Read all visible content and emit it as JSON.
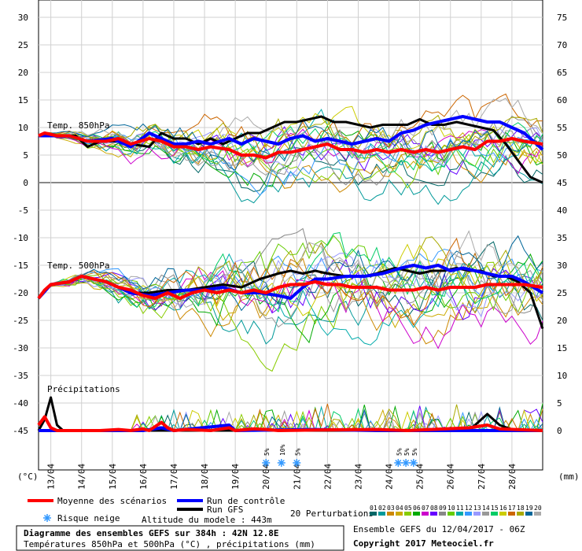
{
  "chart_data": {
    "type": "line",
    "title": "Diagramme des ensembles GEFS sur 384h : 42N 12.8E",
    "subtitle": "Températures 850hPa et 500hPa (°C) , précipitations (mm)",
    "left_axis": {
      "unit": "(°C)",
      "ticks": [
        30,
        25,
        20,
        15,
        10,
        5,
        0,
        -5,
        -10,
        -15,
        -20,
        -25,
        -30,
        -35,
        -40,
        -45
      ]
    },
    "right_axis": {
      "unit": "(mm)",
      "ticks": [
        75,
        70,
        65,
        60,
        55,
        50,
        45,
        40,
        35,
        30,
        25,
        20,
        15,
        10,
        5,
        0
      ]
    },
    "dates": [
      "13/04",
      "14/04",
      "15/04",
      "16/04",
      "17/04",
      "18/04",
      "19/04",
      "20/04",
      "21/04",
      "22/04",
      "23/04",
      "24/04",
      "25/04",
      "26/04",
      "27/04",
      "28/04"
    ],
    "panels": {
      "t850": "Temp. 850hPa",
      "t500": "Temp. 500hPa",
      "precip": "Précipitations"
    },
    "snow_risk": [
      {
        "t": 74,
        "pct": "5%"
      },
      {
        "t": 79,
        "pct": "10%"
      },
      {
        "t": 84,
        "pct": "5%"
      },
      {
        "t": 117,
        "pct": "5%"
      },
      {
        "t": 119.5,
        "pct": "5%"
      },
      {
        "t": 122,
        "pct": "5%"
      }
    ],
    "series": [
      {
        "name": "Moyenne des scénarios",
        "color": "#ff0000",
        "width": 4,
        "t850": [
          [
            0,
            8.5
          ],
          [
            2,
            9
          ],
          [
            6,
            8.5
          ],
          [
            10,
            8.5
          ],
          [
            16,
            7.5
          ],
          [
            22,
            7.5
          ],
          [
            26,
            8
          ],
          [
            30,
            7
          ],
          [
            36,
            8
          ],
          [
            40,
            7.5
          ],
          [
            44,
            6.5
          ],
          [
            48,
            6.5
          ],
          [
            52,
            6
          ],
          [
            56,
            6.5
          ],
          [
            62,
            6
          ],
          [
            66,
            5
          ],
          [
            70,
            5
          ],
          [
            74,
            4.5
          ],
          [
            78,
            5.5
          ],
          [
            82,
            5.5
          ],
          [
            86,
            6
          ],
          [
            90,
            6.5
          ],
          [
            94,
            7
          ],
          [
            98,
            6
          ],
          [
            102,
            6
          ],
          [
            106,
            5.5
          ],
          [
            110,
            6
          ],
          [
            114,
            5.5
          ],
          [
            118,
            6
          ],
          [
            122,
            5.5
          ],
          [
            126,
            6
          ],
          [
            130,
            5.5
          ],
          [
            134,
            6
          ],
          [
            138,
            6.5
          ],
          [
            142,
            6
          ],
          [
            146,
            7.5
          ],
          [
            150,
            7.5
          ],
          [
            154,
            8
          ],
          [
            158,
            7.5
          ],
          [
            164,
            7
          ]
        ],
        "t500": [
          [
            0,
            -21
          ],
          [
            2,
            -19.5
          ],
          [
            4,
            -18.5
          ],
          [
            10,
            -18
          ],
          [
            14,
            -17
          ],
          [
            18,
            -17.5
          ],
          [
            22,
            -18
          ],
          [
            26,
            -19
          ],
          [
            30,
            -19.5
          ],
          [
            34,
            -20.5
          ],
          [
            38,
            -21
          ],
          [
            42,
            -20
          ],
          [
            46,
            -21
          ],
          [
            50,
            -20
          ],
          [
            54,
            -19.5
          ],
          [
            58,
            -20
          ],
          [
            62,
            -19.5
          ],
          [
            66,
            -20
          ],
          [
            70,
            -19.5
          ],
          [
            74,
            -20
          ],
          [
            78,
            -19
          ],
          [
            82,
            -18.5
          ],
          [
            86,
            -18.5
          ],
          [
            90,
            -18
          ],
          [
            94,
            -18.5
          ],
          [
            98,
            -18.5
          ],
          [
            102,
            -19
          ],
          [
            106,
            -19
          ],
          [
            110,
            -19
          ],
          [
            114,
            -19.5
          ],
          [
            118,
            -19.5
          ],
          [
            122,
            -19.5
          ],
          [
            126,
            -19
          ],
          [
            130,
            -19.5
          ],
          [
            134,
            -19
          ],
          [
            138,
            -19
          ],
          [
            142,
            -19
          ],
          [
            146,
            -18.5
          ],
          [
            150,
            -18.5
          ],
          [
            154,
            -18.5
          ],
          [
            158,
            -18.5
          ],
          [
            164,
            -19
          ]
        ],
        "precip": [
          [
            0,
            1
          ],
          [
            2,
            2.5
          ],
          [
            4,
            0.5
          ],
          [
            6,
            0
          ],
          [
            10,
            0
          ],
          [
            20,
            0
          ],
          [
            26,
            0.2
          ],
          [
            30,
            0
          ],
          [
            34,
            0.3
          ],
          [
            36,
            0
          ],
          [
            40,
            1.5
          ],
          [
            42,
            0.5
          ],
          [
            44,
            0
          ],
          [
            48,
            0.2
          ],
          [
            56,
            0
          ],
          [
            62,
            0.5
          ],
          [
            64,
            0
          ],
          [
            70,
            0.3
          ],
          [
            74,
            0.2
          ],
          [
            78,
            0
          ],
          [
            90,
            0.1
          ],
          [
            110,
            0.2
          ],
          [
            120,
            0
          ],
          [
            140,
            0.5
          ],
          [
            146,
            1
          ],
          [
            150,
            0.3
          ],
          [
            164,
            0
          ]
        ]
      },
      {
        "name": "Run de contrôle",
        "color": "#0000ff",
        "width": 4,
        "t850": [
          [
            0,
            8.5
          ],
          [
            6,
            8.5
          ],
          [
            10,
            8.5
          ],
          [
            16,
            7.5
          ],
          [
            24,
            8
          ],
          [
            30,
            6.5
          ],
          [
            36,
            9
          ],
          [
            40,
            8
          ],
          [
            44,
            7
          ],
          [
            48,
            7
          ],
          [
            52,
            7.5
          ],
          [
            56,
            7
          ],
          [
            62,
            8
          ],
          [
            66,
            7
          ],
          [
            70,
            8
          ],
          [
            74,
            7.5
          ],
          [
            78,
            7
          ],
          [
            82,
            8
          ],
          [
            86,
            8.5
          ],
          [
            90,
            7.5
          ],
          [
            94,
            8
          ],
          [
            98,
            7.5
          ],
          [
            102,
            7
          ],
          [
            106,
            7.5
          ],
          [
            110,
            8
          ],
          [
            114,
            7.5
          ],
          [
            118,
            9
          ],
          [
            122,
            9.5
          ],
          [
            126,
            10.5
          ],
          [
            130,
            11
          ],
          [
            134,
            11.5
          ],
          [
            138,
            12
          ],
          [
            142,
            11.5
          ],
          [
            146,
            11
          ],
          [
            150,
            11
          ],
          [
            154,
            10
          ],
          [
            158,
            9
          ],
          [
            164,
            6
          ]
        ],
        "t500": [
          [
            0,
            -21
          ],
          [
            4,
            -18.5
          ],
          [
            10,
            -18
          ],
          [
            14,
            -17
          ],
          [
            22,
            -18
          ],
          [
            30,
            -20
          ],
          [
            36,
            -20.5
          ],
          [
            42,
            -20
          ],
          [
            48,
            -19.5
          ],
          [
            54,
            -19.5
          ],
          [
            60,
            -19
          ],
          [
            66,
            -20
          ],
          [
            72,
            -20
          ],
          [
            78,
            -20.5
          ],
          [
            82,
            -21
          ],
          [
            86,
            -19
          ],
          [
            90,
            -17.5
          ],
          [
            94,
            -17.5
          ],
          [
            100,
            -17
          ],
          [
            106,
            -17
          ],
          [
            112,
            -16.5
          ],
          [
            118,
            -15.5
          ],
          [
            122,
            -15
          ],
          [
            126,
            -15.5
          ],
          [
            130,
            -15
          ],
          [
            134,
            -16
          ],
          [
            138,
            -15.5
          ],
          [
            142,
            -16
          ],
          [
            146,
            -16.5
          ],
          [
            150,
            -17
          ],
          [
            154,
            -17
          ],
          [
            158,
            -18
          ],
          [
            164,
            -20
          ]
        ],
        "precip": [
          [
            0,
            0
          ],
          [
            20,
            0
          ],
          [
            34,
            0
          ],
          [
            40,
            0.5
          ],
          [
            44,
            0
          ],
          [
            62,
            1
          ],
          [
            64,
            0
          ],
          [
            90,
            0.2
          ],
          [
            110,
            0
          ],
          [
            164,
            0
          ]
        ]
      },
      {
        "name": "Run GFS",
        "color": "#000000",
        "width": 3,
        "t850": [
          [
            0,
            8.5
          ],
          [
            6,
            8.5
          ],
          [
            12,
            8.5
          ],
          [
            16,
            6.5
          ],
          [
            20,
            7.5
          ],
          [
            26,
            7.5
          ],
          [
            30,
            7
          ],
          [
            36,
            6.5
          ],
          [
            40,
            9
          ],
          [
            44,
            8
          ],
          [
            48,
            8
          ],
          [
            52,
            7
          ],
          [
            56,
            8
          ],
          [
            60,
            7
          ],
          [
            64,
            8
          ],
          [
            68,
            9
          ],
          [
            72,
            9
          ],
          [
            76,
            10
          ],
          [
            80,
            11
          ],
          [
            84,
            11
          ],
          [
            88,
            11.5
          ],
          [
            92,
            12
          ],
          [
            96,
            11
          ],
          [
            100,
            11
          ],
          [
            104,
            10.5
          ],
          [
            108,
            10
          ],
          [
            112,
            10.5
          ],
          [
            116,
            10.5
          ],
          [
            120,
            10.5
          ],
          [
            124,
            11.5
          ],
          [
            128,
            10.5
          ],
          [
            132,
            10.5
          ],
          [
            136,
            11
          ],
          [
            140,
            10.5
          ],
          [
            144,
            10
          ],
          [
            148,
            9.5
          ],
          [
            152,
            7
          ],
          [
            156,
            4
          ],
          [
            160,
            1
          ],
          [
            164,
            0
          ]
        ],
        "t500": [
          [
            0,
            -21
          ],
          [
            4,
            -18.5
          ],
          [
            10,
            -18
          ],
          [
            14,
            -17
          ],
          [
            22,
            -18
          ],
          [
            30,
            -20
          ],
          [
            36,
            -20
          ],
          [
            42,
            -19.5
          ],
          [
            48,
            -19.5
          ],
          [
            54,
            -19
          ],
          [
            60,
            -18.5
          ],
          [
            66,
            -19
          ],
          [
            72,
            -17.5
          ],
          [
            78,
            -16.5
          ],
          [
            82,
            -16
          ],
          [
            86,
            -16.5
          ],
          [
            90,
            -16
          ],
          [
            94,
            -16.5
          ],
          [
            100,
            -17
          ],
          [
            106,
            -17
          ],
          [
            110,
            -16.5
          ],
          [
            116,
            -15.5
          ],
          [
            120,
            -16
          ],
          [
            124,
            -16.5
          ],
          [
            128,
            -16
          ],
          [
            132,
            -16
          ],
          [
            136,
            -15.5
          ],
          [
            140,
            -16
          ],
          [
            144,
            -16
          ],
          [
            148,
            -17
          ],
          [
            152,
            -17
          ],
          [
            156,
            -18
          ],
          [
            160,
            -20
          ],
          [
            164,
            -26.5
          ]
        ],
        "precip": [
          [
            0,
            0
          ],
          [
            2,
            2
          ],
          [
            4,
            6
          ],
          [
            6,
            1
          ],
          [
            8,
            0
          ],
          [
            20,
            0
          ],
          [
            40,
            0
          ],
          [
            64,
            0
          ],
          [
            100,
            0
          ],
          [
            140,
            0
          ],
          [
            146,
            3
          ],
          [
            150,
            1
          ],
          [
            154,
            0.2
          ],
          [
            164,
            0
          ]
        ]
      }
    ],
    "perturbation_colors": [
      "#006666",
      "#009999",
      "#cc8800",
      "#ccaa00",
      "#88cc00",
      "#00aa00",
      "#cc00cc",
      "#6600ff",
      "#888888",
      "#66cc00",
      "#00aaaa",
      "#3399ff",
      "#9999ff",
      "#999999",
      "#00cc66",
      "#cccc00",
      "#cc6600",
      "#aaaa00",
      "#006699",
      "#aaaaaa"
    ],
    "legend": {
      "mean": "Moyenne des scénarios",
      "control": "Run de contrôle",
      "gfs": "Run GFS",
      "snow": "Risque neige",
      "altitude": "Altitude du modele : 443m",
      "perturbations": "20 Perturbations",
      "perturbation_ids": [
        "01",
        "02",
        "03",
        "04",
        "05",
        "06",
        "07",
        "08",
        "09",
        "10",
        "11",
        "12",
        "13",
        "14",
        "15",
        "16",
        "17",
        "18",
        "19",
        "20"
      ]
    },
    "footer": {
      "ensemble": "Ensemble GEFS du 12/04/2017 - 06Z",
      "copyright": "Copyright 2017 Meteociel.fr"
    }
  }
}
